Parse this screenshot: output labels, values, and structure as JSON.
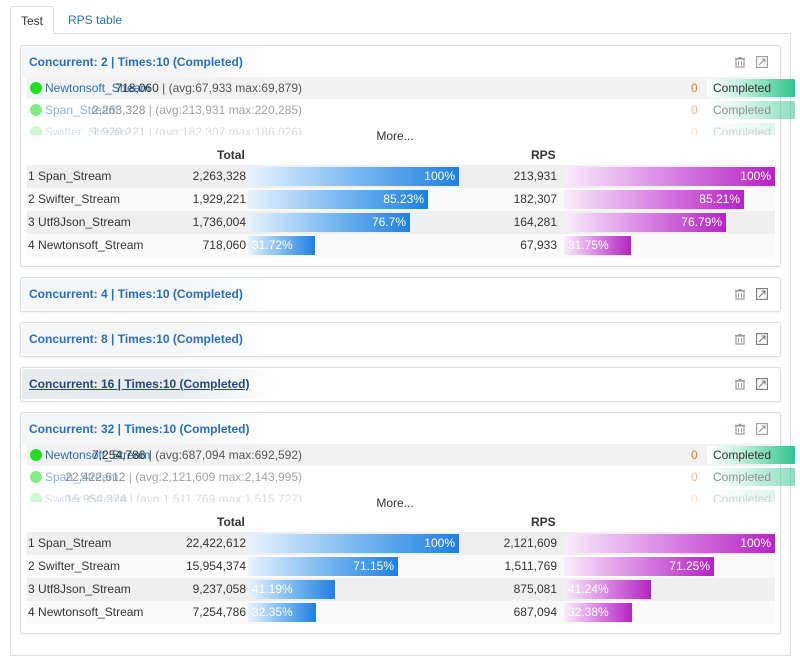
{
  "tabs": {
    "test": "Test",
    "rps_table": "RPS table"
  },
  "cards": [
    {
      "title": "Concurrent: 2 | Times:10 (Completed)",
      "streams": [
        {
          "name": "Newtonsoft_Stream",
          "total": "718,060",
          "stats": " |   (avg:67,933 max:69,879)",
          "errors": "0",
          "status": "Completed"
        },
        {
          "name": "Span_Stream",
          "total": "2,263,328",
          "stats": " | (avg:213,931 max:220,285)",
          "errors": "0",
          "status": "Completed"
        },
        {
          "name": "Swifter_Stream",
          "total": "1,929,221",
          "stats": " | (avg:182,307 max:186,026)",
          "errors": "0",
          "status": "Completed"
        }
      ],
      "more": "More...",
      "headers": {
        "total": "Total",
        "rps": "RPS"
      },
      "ranking": [
        {
          "rank": "1",
          "name": "Span_Stream",
          "total": "2,263,328",
          "total_pct": "100%",
          "total_frac": 1.0,
          "rps": "213,931",
          "rps_pct": "100%",
          "rps_frac": 1.0
        },
        {
          "rank": "2",
          "name": "Swifter_Stream",
          "total": "1,929,221",
          "total_pct": "85.23%",
          "total_frac": 0.8523,
          "rps": "182,307",
          "rps_pct": "85.21%",
          "rps_frac": 0.8521
        },
        {
          "rank": "3",
          "name": "Utf8Json_Stream",
          "total": "1,736,004",
          "total_pct": "76.7%",
          "total_frac": 0.767,
          "rps": "164,281",
          "rps_pct": "76.79%",
          "rps_frac": 0.7679
        },
        {
          "rank": "4",
          "name": "Newtonsoft_Stream",
          "total": "718,060",
          "total_pct": "31.72%",
          "total_frac": 0.3172,
          "rps": "67,933",
          "rps_pct": "31.75%",
          "rps_frac": 0.3175
        }
      ]
    },
    {
      "title": "Concurrent: 4 | Times:10 (Completed)"
    },
    {
      "title": "Concurrent: 8 | Times:10 (Completed)"
    },
    {
      "title": "Concurrent: 16 | Times:10 (Completed)"
    },
    {
      "title": "Concurrent: 32 | Times:10 (Completed)",
      "streams": [
        {
          "name": "Newtonsoft_Stream",
          "total": "7,254,786",
          "stats": " |   (avg:687,094 max:692,592)",
          "errors": "0",
          "status": "Completed"
        },
        {
          "name": "Span_Stream",
          "total": "22,422,612",
          "stats": " | (avg:2,121,609 max:2,143,995)",
          "errors": "0",
          "status": "Completed"
        },
        {
          "name": "Swifter_Stream",
          "total": "15,954,374",
          "stats": " | (avg:1,511,769 max:1,515,727)",
          "errors": "0",
          "status": "Completed"
        }
      ],
      "more": "More...",
      "headers": {
        "total": "Total",
        "rps": "RPS"
      },
      "ranking": [
        {
          "rank": "1",
          "name": "Span_Stream",
          "total": "22,422,612",
          "total_pct": "100%",
          "total_frac": 1.0,
          "rps": "2,121,609",
          "rps_pct": "100%",
          "rps_frac": 1.0
        },
        {
          "rank": "2",
          "name": "Swifter_Stream",
          "total": "15,954,374",
          "total_pct": "71.15%",
          "total_frac": 0.7115,
          "rps": "1,511,769",
          "rps_pct": "71.25%",
          "rps_frac": 0.7125
        },
        {
          "rank": "3",
          "name": "Utf8Json_Stream",
          "total": "9,237,058",
          "total_pct": "41.19%",
          "total_frac": 0.4119,
          "rps": "875,081",
          "rps_pct": "41.24%",
          "rps_frac": 0.4124
        },
        {
          "rank": "4",
          "name": "Newtonsoft_Stream",
          "total": "7,254,786",
          "total_pct": "32.35%",
          "total_frac": 0.3235,
          "rps": "687,094",
          "rps_pct": "32.38%",
          "rps_frac": 0.3238
        }
      ]
    }
  ],
  "icons": {
    "trash": "trash-icon",
    "expand": "expand-icon"
  },
  "colors": {
    "link": "#2a6ebb",
    "status_dot": "#22dd22",
    "total_bar": "#1f80e0",
    "rps_bar": "#b424c2",
    "error_count": "#e07a2c",
    "status_fill": "#2fc48f"
  }
}
